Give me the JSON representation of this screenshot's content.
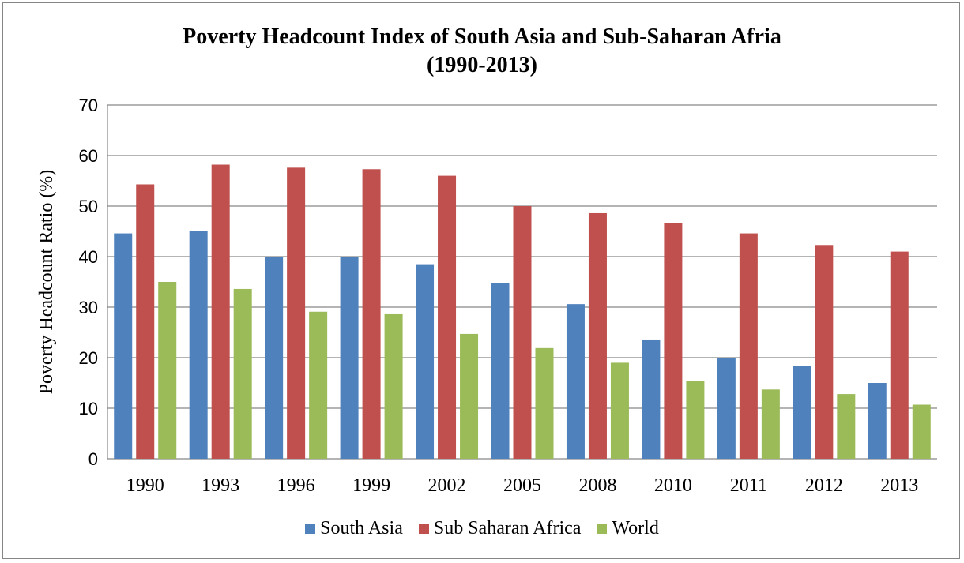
{
  "chart_data": {
    "type": "bar",
    "title": "Poverty Headcount Index of South Asia and Sub-Saharan Afria",
    "subtitle": "(1990-2013)",
    "xlabel": "",
    "ylabel": "Poverty  Headcount Ratio (%)",
    "ylim": [
      0,
      70
    ],
    "yticks": [
      0,
      10,
      20,
      30,
      40,
      50,
      60,
      70
    ],
    "grid": true,
    "legend_position": "bottom",
    "categories": [
      "1990",
      "1993",
      "1996",
      "1999",
      "2002",
      "2005",
      "2008",
      "2010",
      "2011",
      "2012",
      "2013"
    ],
    "series": [
      {
        "name": "South Asia",
        "color": "#4f81bd",
        "values": [
          44.6,
          45.0,
          40.0,
          40.0,
          38.5,
          34.8,
          30.6,
          23.6,
          20.0,
          18.4,
          15.0
        ]
      },
      {
        "name": "Sub Saharan Africa",
        "color": "#c0504d",
        "values": [
          54.3,
          58.2,
          57.6,
          57.3,
          56.0,
          50.0,
          48.6,
          46.7,
          44.6,
          42.3,
          41.0
        ]
      },
      {
        "name": "World",
        "color": "#9bbb59",
        "values": [
          35.0,
          33.6,
          29.1,
          28.6,
          24.7,
          21.9,
          19.0,
          15.4,
          13.7,
          12.8,
          10.7
        ]
      }
    ]
  }
}
